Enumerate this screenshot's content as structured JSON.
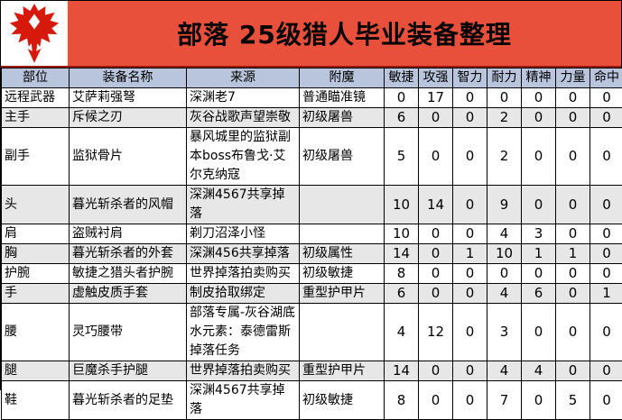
{
  "title": "部落 25级猎人毕业装备整理",
  "logo": {
    "name": "horde-faction-emblem"
  },
  "colors": {
    "title_band": "#e8503c",
    "title_divider": "#9a1a0e",
    "header_bg": "#b9c5dd",
    "alt_row_bg": "#e7e7e7",
    "logo_red": "#d6190b",
    "grid_line": "#000000"
  },
  "table": {
    "headers": [
      "部位",
      "装备名称",
      "来源",
      "附魔",
      "敏捷",
      "攻强",
      "智力",
      "耐力",
      "精神",
      "力量",
      "命中"
    ],
    "rows": [
      {
        "slot": "远程武器",
        "name": "艾萨莉强弩",
        "source": "深渊老7",
        "enchant": "普通瞄准镜",
        "stats": [
          "0",
          "17",
          "0",
          "0",
          "0",
          "0",
          "0"
        ]
      },
      {
        "slot": "主手",
        "name": "斥候之刃",
        "source": "灰谷战歌声望崇敬",
        "enchant": "初级屠兽",
        "stats": [
          "6",
          "0",
          "0",
          "2",
          "0",
          "0",
          "0"
        ]
      },
      {
        "slot": "副手",
        "name": "监狱骨片",
        "source": "暴风城里的监狱副本boss布鲁戈·艾尔克纳寇",
        "enchant": "初级屠兽",
        "stats": [
          "5",
          "0",
          "0",
          "2",
          "0",
          "0",
          "0"
        ]
      },
      {
        "slot": "头",
        "name": "暮光斩杀者的风帽",
        "source": "深渊4567共享掉落",
        "enchant": "",
        "stats": [
          "10",
          "14",
          "0",
          "9",
          "0",
          "0",
          "0"
        ]
      },
      {
        "slot": "肩",
        "name": "盗贼衬肩",
        "source": "剃刀沼泽小怪",
        "enchant": "",
        "stats": [
          "10",
          "0",
          "0",
          "4",
          "3",
          "0",
          "0"
        ]
      },
      {
        "slot": "胸",
        "name": "暮光斩杀者的外套",
        "source": "深渊456共享掉落",
        "enchant": "初级属性",
        "stats": [
          "14",
          "0",
          "1",
          "10",
          "1",
          "1",
          "0"
        ]
      },
      {
        "slot": "护腕",
        "name": "敏捷之猎头者护腕",
        "source": "世界掉落拍卖购买",
        "enchant": "初级敏捷",
        "stats": [
          "8",
          "0",
          "0",
          "0",
          "0",
          "0",
          "0"
        ]
      },
      {
        "slot": "手",
        "name": "虚触皮质手套",
        "source": "制皮拾取绑定",
        "enchant": "重型护甲片",
        "stats": [
          "6",
          "0",
          "0",
          "4",
          "6",
          "0",
          "1"
        ]
      },
      {
        "slot": "腰",
        "name": "灵巧腰带",
        "source": "部落专属-灰谷湖底水元素：泰德雷斯掉落任务",
        "enchant": "",
        "stats": [
          "4",
          "12",
          "0",
          "3",
          "0",
          "0",
          "0"
        ]
      },
      {
        "slot": "腿",
        "name": "巨魔杀手护腿",
        "source": "世界掉落拍卖购买",
        "enchant": "重型护甲片",
        "stats": [
          "14",
          "0",
          "0",
          "4",
          "4",
          "0",
          "0"
        ]
      },
      {
        "slot": "鞋",
        "name": "暮光斩杀者的足垫",
        "source": "深渊4567共享掉落",
        "enchant": "初级敏捷",
        "stats": [
          "8",
          "0",
          "0",
          "7",
          "0",
          "5",
          "0"
        ]
      }
    ]
  }
}
